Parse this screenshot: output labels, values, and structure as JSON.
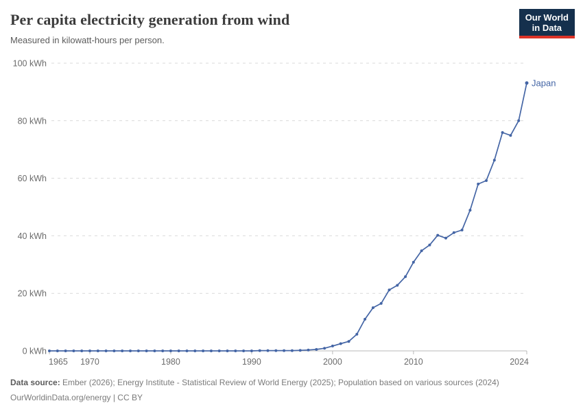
{
  "header": {
    "title": "Per capita electricity generation from wind",
    "subtitle": "Measured in kilowatt-hours per person.",
    "logo": {
      "line1": "Our World",
      "line2": "in Data",
      "bg_color": "#15304d",
      "accent_color": "#dc3328"
    }
  },
  "chart_data": {
    "type": "line",
    "title": "Per capita electricity generation from wind",
    "ylabel": "",
    "xlabel": "",
    "unit": "kWh",
    "xlim": [
      1965,
      2024
    ],
    "ylim": [
      0,
      100
    ],
    "grid": "horizontal-dashed",
    "legend_position": "end-of-line-label",
    "x_ticks": [
      1965,
      1970,
      1980,
      1990,
      2000,
      2010,
      2024
    ],
    "x_tick_labels": [
      "1965",
      "1970",
      "1980",
      "1990",
      "2000",
      "2010",
      "2024"
    ],
    "y_ticks": [
      0,
      20,
      40,
      60,
      80,
      100
    ],
    "y_tick_labels": [
      "0 kWh",
      "20 kWh",
      "40 kWh",
      "60 kWh",
      "80 kWh",
      "100 kWh"
    ],
    "series": [
      {
        "name": "Japan",
        "color": "#4465a5",
        "x": [
          1965,
          1966,
          1967,
          1968,
          1969,
          1970,
          1971,
          1972,
          1973,
          1974,
          1975,
          1976,
          1977,
          1978,
          1979,
          1980,
          1981,
          1982,
          1983,
          1984,
          1985,
          1986,
          1987,
          1988,
          1989,
          1990,
          1991,
          1992,
          1993,
          1994,
          1995,
          1996,
          1997,
          1998,
          1999,
          2000,
          2001,
          2002,
          2003,
          2004,
          2005,
          2006,
          2007,
          2008,
          2009,
          2010,
          2011,
          2012,
          2013,
          2014,
          2015,
          2016,
          2017,
          2018,
          2019,
          2020,
          2021,
          2022,
          2023,
          2024
        ],
        "values": [
          0,
          0,
          0,
          0,
          0,
          0,
          0,
          0,
          0,
          0,
          0,
          0,
          0,
          0,
          0,
          0,
          0,
          0,
          0,
          0,
          0,
          0,
          0,
          0,
          0,
          0,
          0.1,
          0.1,
          0.1,
          0.1,
          0.1,
          0.2,
          0.3,
          0.5,
          0.9,
          1.7,
          2.5,
          3.3,
          5.8,
          11,
          15,
          16.5,
          21.2,
          22.8,
          25.8,
          30.8,
          34.8,
          36.8,
          40.2,
          39.2,
          41.1,
          42,
          48.9,
          58,
          59.2,
          66.3,
          75.9,
          74.9,
          80,
          93.1
        ]
      }
    ],
    "colors": {
      "grid": "#d9d9d9",
      "axis": "#b9b9b9",
      "tick_label": "#6b6b6b"
    }
  },
  "footer": {
    "source_label": "Data source:",
    "source_text": " Ember (2026); Energy Institute - Statistical Review of World Energy (2025); Population based on various sources (2024)",
    "link_line": "OurWorldinData.org/energy | CC BY"
  }
}
